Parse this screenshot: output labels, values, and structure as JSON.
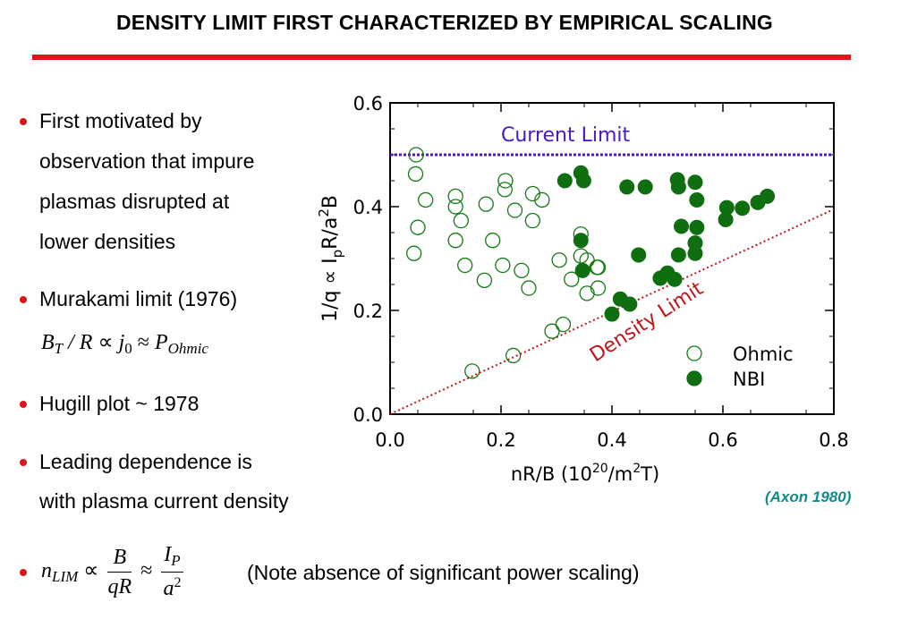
{
  "slide": {
    "title": "DENSITY LIMIT FIRST CHARACTERIZED BY EMPIRICAL SCALING",
    "accent_color": "#e0141b",
    "bullets": [
      {
        "lines": [
          "First motivated by",
          "observation that impure",
          "plasmas disrupted at",
          "lower densities"
        ]
      },
      {
        "lines": [
          "Murakami limit (1976)"
        ]
      },
      {
        "lines": [
          "Hugill plot ~ 1978"
        ]
      },
      {
        "lines": [
          "Leading dependence is",
          "with plasma current density"
        ]
      }
    ],
    "murakami_formula": {
      "B": "B",
      "T_sub": "T",
      "slash_R": "/ R",
      "prop": "∝",
      "j": "j",
      "zero_sub": "0",
      "approx": "≈",
      "P": "P",
      "ohmic_sub": "Ohmic"
    },
    "nlim_formula": {
      "n": "n",
      "lim_sub": "LIM",
      "prop": "∝",
      "num1": "B",
      "den1": "qR",
      "approx": "≈",
      "num2_I": "I",
      "num2_sub": "P",
      "den2_a": "a",
      "den2_sup": "2"
    },
    "note": "(Note absence of significant power scaling)",
    "source": "(Axon 1980)"
  },
  "chart_data": {
    "type": "scatter",
    "xlabel": "nR/B  (10^20/m^2T)",
    "ylabel": "1/q ∝ IpR/a^2B",
    "xlim": [
      0.0,
      0.8
    ],
    "ylim": [
      0.0,
      0.6
    ],
    "xticks": [
      "0.0",
      "0.2",
      "0.4",
      "0.6",
      "0.8"
    ],
    "yticks": [
      "0.0",
      "0.2",
      "0.4",
      "0.6"
    ],
    "annotations": {
      "current_limit": {
        "text": "Current Limit",
        "y": 0.5,
        "color": "#4a17c9"
      },
      "density_limit": {
        "text": "Density Limit",
        "x": [
          0.0,
          0.8
        ],
        "y": [
          0.0,
          0.395
        ],
        "color": "#c0141b"
      }
    },
    "series": [
      {
        "name": "Ohmic",
        "marker": "open-circle",
        "color": "#137a13",
        "points": [
          [
            0.047,
            0.5
          ],
          [
            0.046,
            0.463
          ],
          [
            0.064,
            0.413
          ],
          [
            0.05,
            0.36
          ],
          [
            0.043,
            0.31
          ],
          [
            0.118,
            0.42
          ],
          [
            0.118,
            0.4
          ],
          [
            0.128,
            0.373
          ],
          [
            0.118,
            0.335
          ],
          [
            0.135,
            0.287
          ],
          [
            0.148,
            0.083
          ],
          [
            0.17,
            0.258
          ],
          [
            0.173,
            0.405
          ],
          [
            0.185,
            0.335
          ],
          [
            0.203,
            0.287
          ],
          [
            0.208,
            0.45
          ],
          [
            0.207,
            0.433
          ],
          [
            0.225,
            0.393
          ],
          [
            0.237,
            0.277
          ],
          [
            0.222,
            0.113
          ],
          [
            0.25,
            0.243
          ],
          [
            0.257,
            0.425
          ],
          [
            0.274,
            0.413
          ],
          [
            0.257,
            0.373
          ],
          [
            0.292,
            0.16
          ],
          [
            0.312,
            0.173
          ],
          [
            0.305,
            0.297
          ],
          [
            0.327,
            0.26
          ],
          [
            0.344,
            0.305
          ],
          [
            0.344,
            0.347
          ],
          [
            0.355,
            0.297
          ],
          [
            0.355,
            0.233
          ],
          [
            0.375,
            0.283
          ],
          [
            0.375,
            0.243
          ],
          [
            0.373,
            0.283
          ]
        ]
      },
      {
        "name": "NBI",
        "marker": "filled-circle",
        "color": "#0f6e0f",
        "points": [
          [
            0.315,
            0.45
          ],
          [
            0.344,
            0.465
          ],
          [
            0.349,
            0.45
          ],
          [
            0.344,
            0.335
          ],
          [
            0.347,
            0.277
          ],
          [
            0.4,
            0.193
          ],
          [
            0.415,
            0.222
          ],
          [
            0.432,
            0.212
          ],
          [
            0.427,
            0.438
          ],
          [
            0.46,
            0.438
          ],
          [
            0.448,
            0.307
          ],
          [
            0.487,
            0.262
          ],
          [
            0.5,
            0.272
          ],
          [
            0.513,
            0.26
          ],
          [
            0.518,
            0.452
          ],
          [
            0.52,
            0.438
          ],
          [
            0.525,
            0.362
          ],
          [
            0.52,
            0.307
          ],
          [
            0.55,
            0.447
          ],
          [
            0.553,
            0.413
          ],
          [
            0.553,
            0.36
          ],
          [
            0.55,
            0.33
          ],
          [
            0.55,
            0.31
          ],
          [
            0.607,
            0.398
          ],
          [
            0.605,
            0.375
          ],
          [
            0.635,
            0.397
          ],
          [
            0.663,
            0.408
          ],
          [
            0.68,
            0.42
          ]
        ]
      }
    ],
    "legend": {
      "placement": "bottom-right",
      "entries": [
        "Ohmic",
        "NBI"
      ]
    }
  }
}
